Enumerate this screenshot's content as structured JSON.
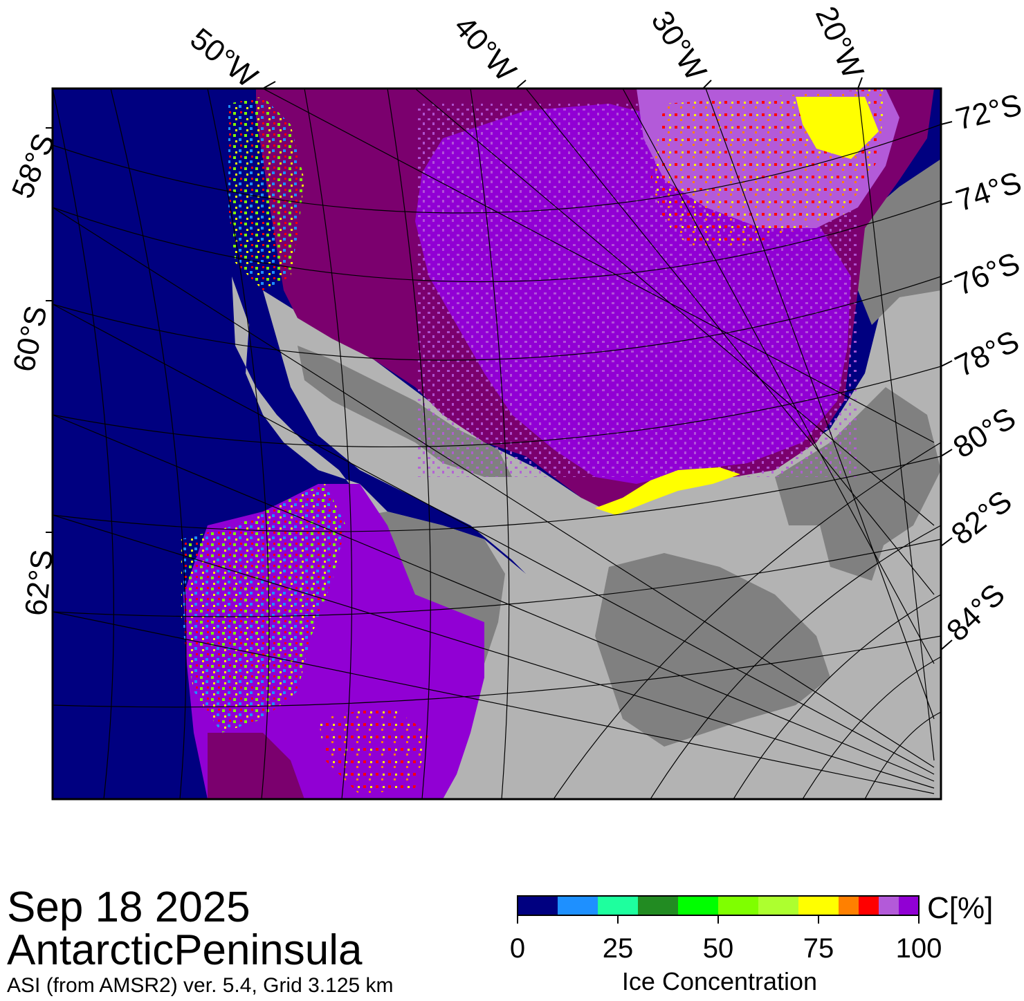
{
  "map": {
    "date": "Sep 18 2025",
    "region": "AntarcticPeninsula",
    "product": "ASI (from AMSR2) ver. 5.4,  Grid 3.125 km",
    "longitude_labels": [
      "50°W",
      "40°W",
      "30°W",
      "20°W"
    ],
    "latitude_labels_left": [
      "58°S",
      "60°S",
      "62°S"
    ],
    "latitude_labels_right": [
      "72°S",
      "74°S",
      "76°S",
      "78°S",
      "80°S",
      "82°S",
      "84°S"
    ]
  },
  "colors": {
    "open_ocean": "#000080",
    "land": "#808080",
    "ice_shelf": "#b3b3b3",
    "high_ice": "#7b006e",
    "ice_95": "#9100d4",
    "ice_90": "#b35ad9",
    "ice_85": "#ff0000",
    "ice_80": "#ff8000",
    "ice_75": "#ffff00"
  },
  "colorbar": {
    "title": "Ice Concentration",
    "unit": "C[%]",
    "ticks": [
      0,
      25,
      50,
      75,
      100
    ],
    "tick_labels": [
      "0",
      "25",
      "50",
      "75",
      "100"
    ],
    "bins": [
      {
        "from": 0,
        "to": 10,
        "color": "#000080"
      },
      {
        "from": 10,
        "to": 20,
        "color": "#1e90ff"
      },
      {
        "from": 20,
        "to": 30,
        "color": "#1eff9e"
      },
      {
        "from": 30,
        "to": 40,
        "color": "#228b22"
      },
      {
        "from": 40,
        "to": 50,
        "color": "#00ff00"
      },
      {
        "from": 50,
        "to": 60,
        "color": "#7fff00"
      },
      {
        "from": 60,
        "to": 70,
        "color": "#adff2f"
      },
      {
        "from": 70,
        "to": 80,
        "color": "#ffff00"
      },
      {
        "from": 80,
        "to": 85,
        "color": "#ff8000"
      },
      {
        "from": 85,
        "to": 90,
        "color": "#ff0000"
      },
      {
        "from": 90,
        "to": 95,
        "color": "#b35ad9"
      },
      {
        "from": 95,
        "to": 100,
        "color": "#9100d4"
      }
    ]
  }
}
